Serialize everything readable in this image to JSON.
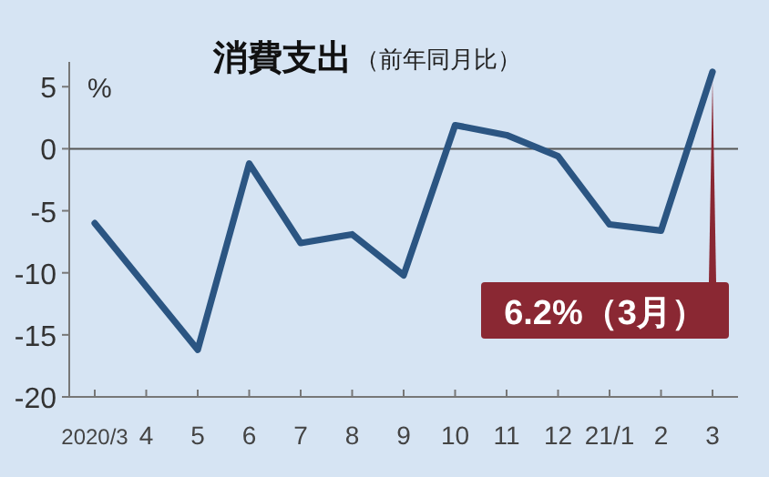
{
  "chart_data": {
    "type": "line",
    "title": "消費支出",
    "subtitle": "（前年同月比）",
    "ylabel": "%",
    "categories": [
      "2020/3",
      "4",
      "5",
      "6",
      "7",
      "8",
      "9",
      "10",
      "11",
      "12",
      "21/1",
      "2",
      "3"
    ],
    "series": [
      {
        "color": "#2b5582",
        "values": [
          -6.0,
          -11.1,
          -16.2,
          -1.2,
          -7.6,
          -6.9,
          -10.2,
          1.9,
          1.1,
          -0.6,
          -6.1,
          -6.6,
          6.2
        ]
      }
    ],
    "ylim": [
      -20,
      7
    ],
    "yticks": [
      -20,
      -15,
      -10,
      -5,
      0,
      5
    ],
    "ref_lines": [
      {
        "axis": "y",
        "value": 0,
        "color": "#555555"
      }
    ],
    "annotations": [
      {
        "text": "6.2%（3月）",
        "x": "3",
        "y": 6.2
      }
    ],
    "grid": false,
    "marker": "none",
    "line_style": "solid"
  }
}
